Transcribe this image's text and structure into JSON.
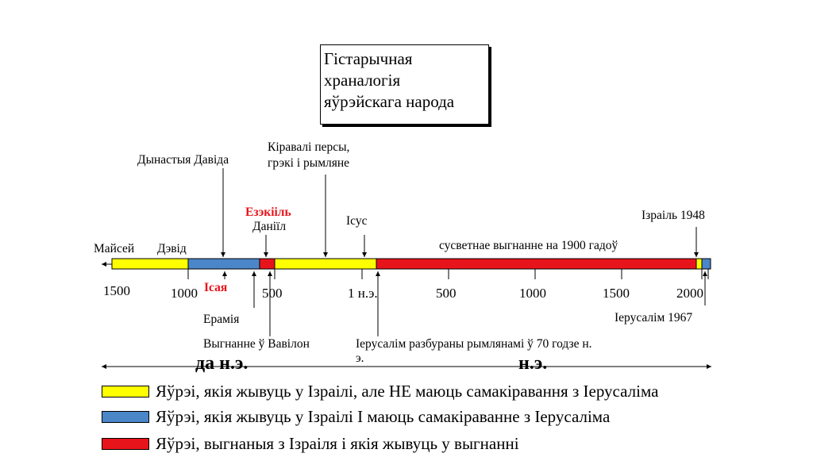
{
  "title": {
    "lines": [
      "Гістарычная",
      "храналогія",
      "яўрэйскага народа"
    ]
  },
  "colors": {
    "yellow": "#ffff00",
    "blue": "#4a86c8",
    "red": "#e8141b",
    "black": "#000000"
  },
  "timeline_labels": {
    "maisei": "Майсей",
    "david": "Дэвід",
    "dynasty": "Дынастыя Давіда",
    "persians_1": "Кіравалі персы,",
    "persians_2": "грэкі і рымляне",
    "ezekiel": "Езэкііль",
    "daniel": "Даніїл",
    "jesus": "Ісус",
    "diaspora": "сусветнае выгнанне на 1900 гадоў",
    "israel_1948": "Ізраіль 1948",
    "isaiah": "Ісая",
    "jeremiah": "Ерамія",
    "exile": "Выгнанне ў Вавілон",
    "destroyed_1": "Іерусалім разбураны рымлянамі ў 70 годзе н.",
    "destroyed_2": "э.",
    "jerusalem_1967": "Іерусалім 1967"
  },
  "ticks": [
    "1500",
    "1000",
    "500",
    "1 н.э.",
    "500",
    "1000",
    "1500",
    "2000"
  ],
  "eras": {
    "bce": "да н.э.",
    "ce": "н.э."
  },
  "legend": [
    {
      "text": "Яўрэі, якія жывуць у Ізраілі, але НЕ маюць самакіравання з Іерусаліма",
      "color": "#ffff00"
    },
    {
      "text": "Яўрэі, якія жывуць у Ізраілі І маюць самакіраванне з Іерусаліма",
      "color": "#4a86c8"
    },
    {
      "text": "Яўрэі, выгнаныя з Ізраіля і якія жывуць у выгнанні",
      "color": "#e8141b"
    }
  ]
}
